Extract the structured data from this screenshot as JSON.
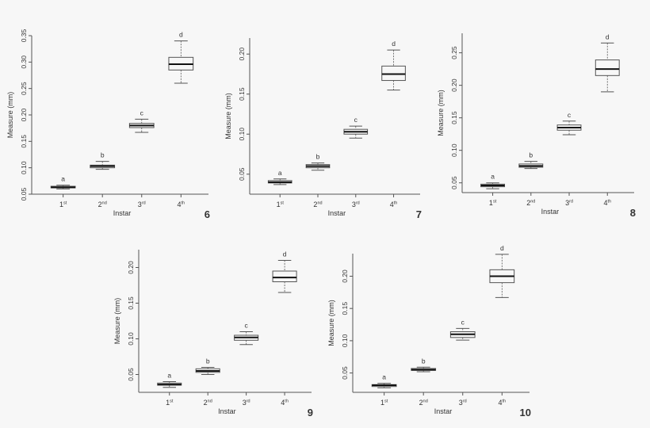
{
  "chart_data": [
    {
      "type": "box",
      "panel_label": "6",
      "xlabel": "Instar",
      "ylabel": "Measure (mm)",
      "categories": [
        "1st",
        "2nd",
        "3rd",
        "4th"
      ],
      "ylim": [
        0.05,
        0.35
      ],
      "yticks": [
        "0.05",
        "0.10",
        "0.15",
        "0.20",
        "0.25",
        "0.30",
        "0.35"
      ],
      "boxes": [
        {
          "min": 0.06,
          "q1": 0.062,
          "median": 0.063,
          "q3": 0.065,
          "max": 0.067,
          "letter": "a"
        },
        {
          "min": 0.097,
          "q1": 0.1,
          "median": 0.103,
          "q3": 0.105,
          "max": 0.112,
          "letter": "b"
        },
        {
          "min": 0.167,
          "q1": 0.176,
          "median": 0.18,
          "q3": 0.184,
          "max": 0.192,
          "letter": "c"
        },
        {
          "min": 0.26,
          "q1": 0.285,
          "median": 0.296,
          "q3": 0.309,
          "max": 0.34,
          "letter": "d"
        }
      ]
    },
    {
      "type": "box",
      "panel_label": "7",
      "xlabel": "Instar",
      "ylabel": "Measure (mm)",
      "categories": [
        "1st",
        "2nd",
        "3rd",
        "4th"
      ],
      "ylim": [
        0.025,
        0.22
      ],
      "yticks": [
        "0.05",
        "0.10",
        "0.15",
        "0.20"
      ],
      "boxes": [
        {
          "min": 0.037,
          "q1": 0.039,
          "median": 0.04,
          "q3": 0.042,
          "max": 0.044,
          "letter": "a"
        },
        {
          "min": 0.055,
          "q1": 0.058,
          "median": 0.06,
          "q3": 0.062,
          "max": 0.064,
          "letter": "b"
        },
        {
          "min": 0.095,
          "q1": 0.1,
          "median": 0.103,
          "q3": 0.106,
          "max": 0.11,
          "letter": "c"
        },
        {
          "min": 0.155,
          "q1": 0.167,
          "median": 0.175,
          "q3": 0.185,
          "max": 0.205,
          "letter": "d"
        }
      ]
    },
    {
      "type": "box",
      "panel_label": "8",
      "xlabel": "Instar",
      "ylabel": "Measure (mm)",
      "categories": [
        "1st",
        "2nd",
        "3rd",
        "4th"
      ],
      "ylim": [
        0.035,
        0.28
      ],
      "yticks": [
        "0.05",
        "0.10",
        "0.15",
        "0.20",
        "0.25"
      ],
      "boxes": [
        {
          "min": 0.041,
          "q1": 0.044,
          "median": 0.046,
          "q3": 0.048,
          "max": 0.05,
          "letter": "a"
        },
        {
          "min": 0.072,
          "q1": 0.074,
          "median": 0.076,
          "q3": 0.079,
          "max": 0.083,
          "letter": "b"
        },
        {
          "min": 0.124,
          "q1": 0.131,
          "median": 0.135,
          "q3": 0.139,
          "max": 0.145,
          "letter": "c"
        },
        {
          "min": 0.19,
          "q1": 0.215,
          "median": 0.225,
          "q3": 0.239,
          "max": 0.265,
          "letter": "d"
        }
      ]
    },
    {
      "type": "box",
      "panel_label": "9",
      "xlabel": "Instar",
      "ylabel": "Measure (mm)",
      "categories": [
        "1st",
        "2nd",
        "3rd",
        "4th"
      ],
      "ylim": [
        0.025,
        0.225
      ],
      "yticks": [
        "0.05",
        "0.10",
        "0.15",
        "0.20"
      ],
      "boxes": [
        {
          "min": 0.032,
          "q1": 0.035,
          "median": 0.036,
          "q3": 0.038,
          "max": 0.04,
          "letter": "a"
        },
        {
          "min": 0.05,
          "q1": 0.053,
          "median": 0.055,
          "q3": 0.058,
          "max": 0.06,
          "letter": "b"
        },
        {
          "min": 0.092,
          "q1": 0.098,
          "median": 0.102,
          "q3": 0.105,
          "max": 0.11,
          "letter": "c"
        },
        {
          "min": 0.165,
          "q1": 0.18,
          "median": 0.186,
          "q3": 0.195,
          "max": 0.21,
          "letter": "d"
        }
      ]
    },
    {
      "type": "box",
      "panel_label": "10",
      "xlabel": "Instar",
      "ylabel": "Measure (mm)",
      "categories": [
        "1st",
        "2nd",
        "3rd",
        "4th"
      ],
      "ylim": [
        0.02,
        0.235
      ],
      "yticks": [
        "0.05",
        "0.10",
        "0.15",
        "0.20"
      ],
      "boxes": [
        {
          "min": 0.027,
          "q1": 0.029,
          "median": 0.031,
          "q3": 0.032,
          "max": 0.034,
          "letter": "a"
        },
        {
          "min": 0.052,
          "q1": 0.054,
          "median": 0.055,
          "q3": 0.057,
          "max": 0.059,
          "letter": "b"
        },
        {
          "min": 0.101,
          "q1": 0.105,
          "median": 0.11,
          "q3": 0.114,
          "max": 0.119,
          "letter": "c"
        },
        {
          "min": 0.167,
          "q1": 0.19,
          "median": 0.2,
          "q3": 0.21,
          "max": 0.234,
          "letter": "d"
        }
      ]
    }
  ]
}
